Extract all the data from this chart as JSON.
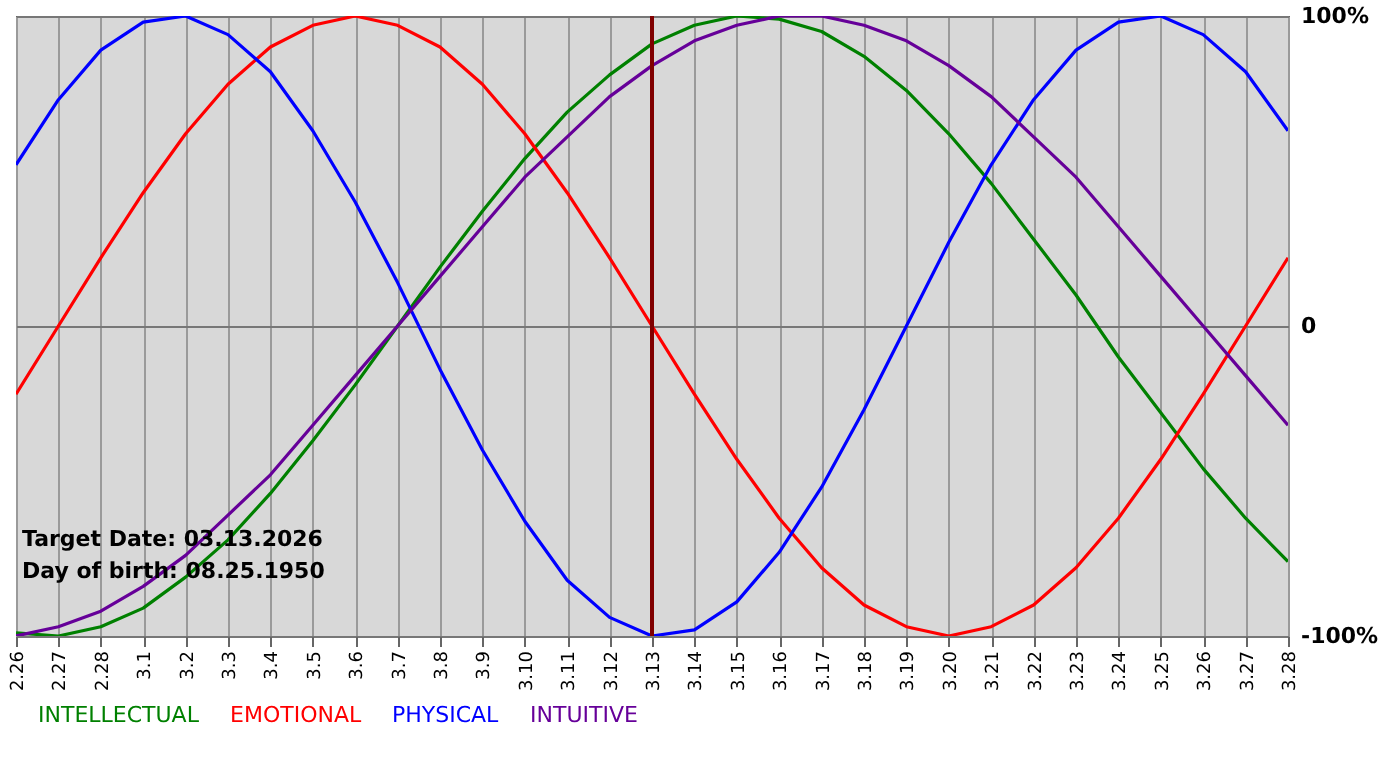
{
  "chart_data": {
    "type": "line",
    "categories": [
      "2.26",
      "2.27",
      "2.28",
      "3.1",
      "3.2",
      "3.3",
      "3.4",
      "3.5",
      "3.6",
      "3.7",
      "3.8",
      "3.9",
      "3.10",
      "3.11",
      "3.12",
      "3.13",
      "3.14",
      "3.15",
      "3.16",
      "3.17",
      "3.18",
      "3.19",
      "3.20",
      "3.21",
      "3.22",
      "3.23",
      "3.24",
      "3.25",
      "3.26",
      "3.27",
      "3.28"
    ],
    "series": [
      {
        "name": "INTELLECTUAL",
        "color": "#008000",
        "values": [
          -99,
          -100,
          -97,
          -91,
          -81,
          -69,
          -54,
          -37,
          -19,
          0,
          19,
          37,
          54,
          69,
          81,
          91,
          97,
          100,
          99,
          95,
          87,
          76,
          62,
          46,
          28,
          10,
          -10,
          -28,
          -46,
          -62,
          -76
        ]
      },
      {
        "name": "EMOTIONAL",
        "color": "#ff0000",
        "values": [
          -22,
          0,
          22,
          43,
          62,
          78,
          90,
          97,
          100,
          97,
          90,
          78,
          62,
          43,
          22,
          0,
          -22,
          -43,
          -62,
          -78,
          -90,
          -97,
          -100,
          -97,
          -90,
          -78,
          -62,
          -43,
          -22,
          0,
          22
        ]
      },
      {
        "name": "PHYSICAL",
        "color": "#0000ff",
        "values": [
          52,
          73,
          89,
          98,
          100,
          94,
          82,
          63,
          40,
          14,
          -14,
          -40,
          -63,
          -82,
          -94,
          -100,
          -98,
          -89,
          -73,
          -52,
          -27,
          0,
          27,
          52,
          73,
          89,
          98,
          100,
          94,
          82,
          63
        ]
      },
      {
        "name": "INTUITIVE",
        "color": "#660099",
        "values": [
          -100,
          -97,
          -92,
          -84,
          -74,
          -61,
          -48,
          -32,
          -16,
          0,
          16,
          32,
          48,
          61,
          74,
          84,
          92,
          97,
          100,
          100,
          97,
          92,
          84,
          74,
          61,
          48,
          32,
          16,
          0,
          -16,
          -32
        ]
      }
    ],
    "ylim": [
      -100,
      100
    ],
    "yticks": [
      {
        "value": 100,
        "label": "100%"
      },
      0,
      {
        "value": -100,
        "label": "-100%"
      }
    ],
    "grid": true,
    "legend": "bottom",
    "ref_lines": [
      {
        "axis": "x",
        "value": "3.13",
        "color": "#800000"
      }
    ],
    "annotations": [
      "Target Date: 03.13.2026",
      "Day of birth: 08.25.1950"
    ]
  }
}
